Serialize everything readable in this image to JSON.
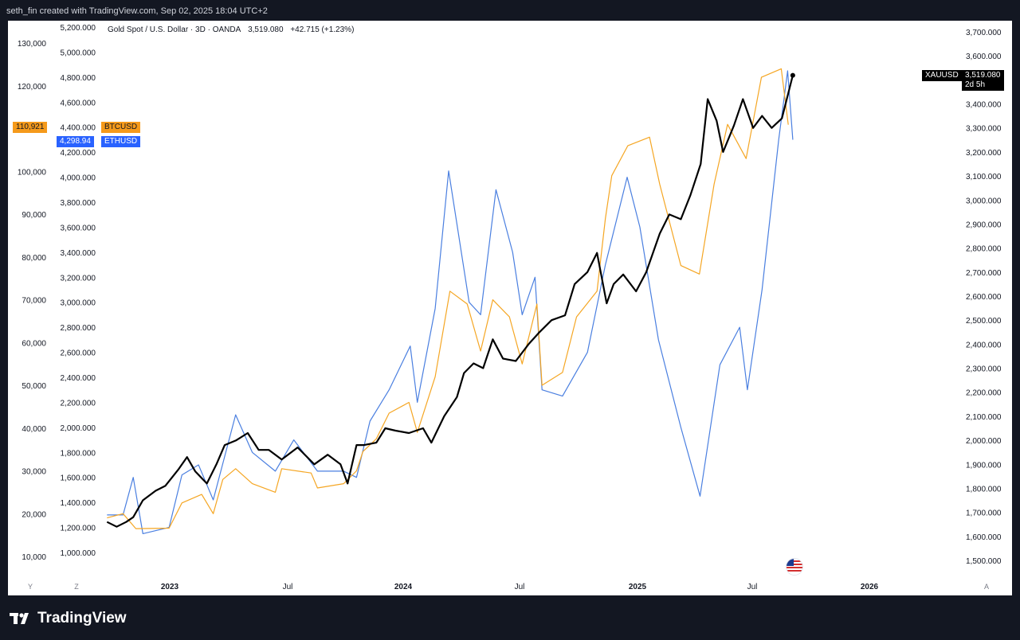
{
  "header": {
    "attribution": "seth_fin created with TradingView.com, Sep 02, 2025 18:04 UTC+2"
  },
  "legend": {
    "symbol": "Gold Spot / U.S. Dollar · 3D · OANDA",
    "price": "3,519.080",
    "change": "+42.715 (+1.23%)"
  },
  "badges": {
    "btc_price": "110,921",
    "btc_symbol": "BTCUSD",
    "eth_price": "4,298.94",
    "eth_symbol": "ETHUSD",
    "xau_symbol": "XAUUSD",
    "xau_price": "3,519.080",
    "xau_countdown": "2d 5h"
  },
  "bottom_buttons": {
    "y": "Y",
    "z": "Z",
    "a": "A"
  },
  "brand": {
    "name": "TradingView"
  },
  "colors": {
    "gold": "#000000",
    "btc": "#f5a623",
    "eth": "#4a7fe0",
    "background": "#131722",
    "panel": "#ffffff"
  },
  "chart_data": {
    "type": "line",
    "title": "Gold Spot / U.S. Dollar · 3D · OANDA",
    "x_ticks": [
      "2023",
      "Jul",
      "2024",
      "Jul",
      "2025",
      "Jul",
      "2026"
    ],
    "axes": {
      "btc_axis": {
        "position": "left-outer",
        "ticks": [
          "10,000",
          "20,000",
          "30,000",
          "40,000",
          "50,000",
          "60,000",
          "70,000",
          "80,000",
          "90,000",
          "100,000",
          "120,000",
          "130,000"
        ]
      },
      "eth_axis": {
        "position": "left-inner",
        "ticks": [
          "1,000.000",
          "1,200.000",
          "1,400.000",
          "1,600.000",
          "1,800.000",
          "2,000.000",
          "2,200.000",
          "2,400.000",
          "2,600.000",
          "2,800.000",
          "3,000.000",
          "3,200.000",
          "3,400.000",
          "3,600.000",
          "3,800.000",
          "4,000.000",
          "4,200.000",
          "4,400.000",
          "4,600.000",
          "4,800.000",
          "5,000.000",
          "5,200.000"
        ]
      },
      "gold_axis": {
        "position": "right",
        "ticks": [
          "1,500.000",
          "1,600.000",
          "1,700.000",
          "1,800.000",
          "1,900.000",
          "2,000.000",
          "2,100.000",
          "2,200.000",
          "2,300.000",
          "2,400.000",
          "2,500.000",
          "2,600.000",
          "2,700.000",
          "2,800.000",
          "2,900.000",
          "3,000.000",
          "3,100.000",
          "3,200.000",
          "3,300.000",
          "3,400.000",
          "3,500.000",
          "3,600.000",
          "3,700.000"
        ]
      }
    },
    "series": [
      {
        "name": "XAUUSD",
        "color": "#000000",
        "points": [
          [
            "2022-09-25",
            1660
          ],
          [
            "2022-10-10",
            1640
          ],
          [
            "2022-10-25",
            1660
          ],
          [
            "2022-11-05",
            1680
          ],
          [
            "2022-11-20",
            1750
          ],
          [
            "2022-12-10",
            1790
          ],
          [
            "2022-12-25",
            1810
          ],
          [
            "2023-01-15",
            1880
          ],
          [
            "2023-01-28",
            1930
          ],
          [
            "2023-02-10",
            1870
          ],
          [
            "2023-02-28",
            1820
          ],
          [
            "2023-03-15",
            1900
          ],
          [
            "2023-03-28",
            1980
          ],
          [
            "2023-04-15",
            2000
          ],
          [
            "2023-05-03",
            2030
          ],
          [
            "2023-05-20",
            1960
          ],
          [
            "2023-06-05",
            1960
          ],
          [
            "2023-06-25",
            1920
          ],
          [
            "2023-07-20",
            1970
          ],
          [
            "2023-08-15",
            1900
          ],
          [
            "2023-09-05",
            1940
          ],
          [
            "2023-09-25",
            1900
          ],
          [
            "2023-10-06",
            1820
          ],
          [
            "2023-10-20",
            1980
          ],
          [
            "2023-11-01",
            1980
          ],
          [
            "2023-11-20",
            1990
          ],
          [
            "2023-12-04",
            2050
          ],
          [
            "2023-12-20",
            2040
          ],
          [
            "2024-01-10",
            2030
          ],
          [
            "2024-02-01",
            2050
          ],
          [
            "2024-02-14",
            1990
          ],
          [
            "2024-03-05",
            2100
          ],
          [
            "2024-03-25",
            2180
          ],
          [
            "2024-04-05",
            2280
          ],
          [
            "2024-04-20",
            2320
          ],
          [
            "2024-05-05",
            2300
          ],
          [
            "2024-05-20",
            2420
          ],
          [
            "2024-06-05",
            2340
          ],
          [
            "2024-06-25",
            2330
          ],
          [
            "2024-07-15",
            2400
          ],
          [
            "2024-08-01",
            2450
          ],
          [
            "2024-08-20",
            2500
          ],
          [
            "2024-09-10",
            2520
          ],
          [
            "2024-09-25",
            2650
          ],
          [
            "2024-10-15",
            2700
          ],
          [
            "2024-10-30",
            2780
          ],
          [
            "2024-11-14",
            2570
          ],
          [
            "2024-11-25",
            2650
          ],
          [
            "2024-12-10",
            2690
          ],
          [
            "2024-12-30",
            2620
          ],
          [
            "2025-01-15",
            2700
          ],
          [
            "2025-02-05",
            2860
          ],
          [
            "2025-02-20",
            2940
          ],
          [
            "2025-03-10",
            2920
          ],
          [
            "2025-03-25",
            3020
          ],
          [
            "2025-04-10",
            3150
          ],
          [
            "2025-04-21",
            3420
          ],
          [
            "2025-05-05",
            3330
          ],
          [
            "2025-05-15",
            3200
          ],
          [
            "2025-06-01",
            3310
          ],
          [
            "2025-06-15",
            3420
          ],
          [
            "2025-07-01",
            3300
          ],
          [
            "2025-07-15",
            3350
          ],
          [
            "2025-07-30",
            3300
          ],
          [
            "2025-08-15",
            3340
          ],
          [
            "2025-09-01",
            3519.08
          ]
        ]
      },
      {
        "name": "BTCUSD",
        "color": "#f5a623",
        "points": [
          [
            "2022-09-25",
            19000
          ],
          [
            "2022-10-20",
            20000
          ],
          [
            "2022-11-09",
            16500
          ],
          [
            "2022-12-31",
            16600
          ],
          [
            "2023-01-20",
            22500
          ],
          [
            "2023-02-20",
            24500
          ],
          [
            "2023-03-10",
            20000
          ],
          [
            "2023-03-25",
            28000
          ],
          [
            "2023-04-14",
            30500
          ],
          [
            "2023-05-10",
            27000
          ],
          [
            "2023-06-15",
            25000
          ],
          [
            "2023-06-25",
            30500
          ],
          [
            "2023-08-10",
            29500
          ],
          [
            "2023-08-20",
            26000
          ],
          [
            "2023-09-30",
            27000
          ],
          [
            "2023-10-20",
            30000
          ],
          [
            "2023-10-30",
            34500
          ],
          [
            "2023-11-20",
            37500
          ],
          [
            "2023-12-10",
            43500
          ],
          [
            "2024-01-10",
            46000
          ],
          [
            "2024-01-23",
            39000
          ],
          [
            "2024-02-20",
            52000
          ],
          [
            "2024-03-14",
            72000
          ],
          [
            "2024-04-10",
            69000
          ],
          [
            "2024-05-01",
            58000
          ],
          [
            "2024-05-20",
            70000
          ],
          [
            "2024-06-15",
            66000
          ],
          [
            "2024-07-05",
            55000
          ],
          [
            "2024-07-28",
            69000
          ],
          [
            "2024-08-05",
            50000
          ],
          [
            "2024-09-06",
            53000
          ],
          [
            "2024-09-28",
            66000
          ],
          [
            "2024-10-30",
            72000
          ],
          [
            "2024-11-12",
            89000
          ],
          [
            "2024-11-22",
            99000
          ],
          [
            "2024-12-17",
            106000
          ],
          [
            "2025-01-20",
            108000
          ],
          [
            "2025-02-05",
            97000
          ],
          [
            "2025-03-10",
            78000
          ],
          [
            "2025-04-08",
            76000
          ],
          [
            "2025-05-01",
            97000
          ],
          [
            "2025-05-22",
            111000
          ],
          [
            "2025-06-20",
            103000
          ],
          [
            "2025-07-14",
            122000
          ],
          [
            "2025-08-14",
            124000
          ],
          [
            "2025-08-25",
            110921
          ]
        ]
      },
      {
        "name": "ETHUSD",
        "color": "#4a7fe0",
        "points": [
          [
            "2022-09-25",
            1300
          ],
          [
            "2022-10-20",
            1300
          ],
          [
            "2022-11-05",
            1600
          ],
          [
            "2022-11-20",
            1150
          ],
          [
            "2022-12-31",
            1200
          ],
          [
            "2023-01-20",
            1620
          ],
          [
            "2023-02-15",
            1700
          ],
          [
            "2023-03-10",
            1420
          ],
          [
            "2023-04-14",
            2100
          ],
          [
            "2023-05-10",
            1800
          ],
          [
            "2023-06-15",
            1650
          ],
          [
            "2023-07-14",
            1900
          ],
          [
            "2023-08-20",
            1650
          ],
          [
            "2023-09-30",
            1650
          ],
          [
            "2023-10-20",
            1600
          ],
          [
            "2023-11-10",
            2050
          ],
          [
            "2023-12-10",
            2300
          ],
          [
            "2024-01-12",
            2650
          ],
          [
            "2024-01-23",
            2200
          ],
          [
            "2024-02-20",
            2950
          ],
          [
            "2024-03-12",
            4050
          ],
          [
            "2024-04-13",
            3000
          ],
          [
            "2024-05-01",
            2900
          ],
          [
            "2024-05-25",
            3900
          ],
          [
            "2024-06-20",
            3400
          ],
          [
            "2024-07-05",
            2900
          ],
          [
            "2024-07-25",
            3200
          ],
          [
            "2024-08-05",
            2300
          ],
          [
            "2024-09-06",
            2250
          ],
          [
            "2024-10-15",
            2600
          ],
          [
            "2024-11-12",
            3300
          ],
          [
            "2024-12-16",
            4000
          ],
          [
            "2025-01-05",
            3600
          ],
          [
            "2025-02-03",
            2700
          ],
          [
            "2025-03-10",
            2000
          ],
          [
            "2025-04-09",
            1450
          ],
          [
            "2025-05-10",
            2500
          ],
          [
            "2025-06-10",
            2800
          ],
          [
            "2025-06-22",
            2300
          ],
          [
            "2025-07-15",
            3100
          ],
          [
            "2025-08-10",
            4300
          ],
          [
            "2025-08-24",
            4850
          ],
          [
            "2025-09-01",
            4298.94
          ]
        ]
      }
    ],
    "legend_position": "top-left",
    "grid": false
  }
}
